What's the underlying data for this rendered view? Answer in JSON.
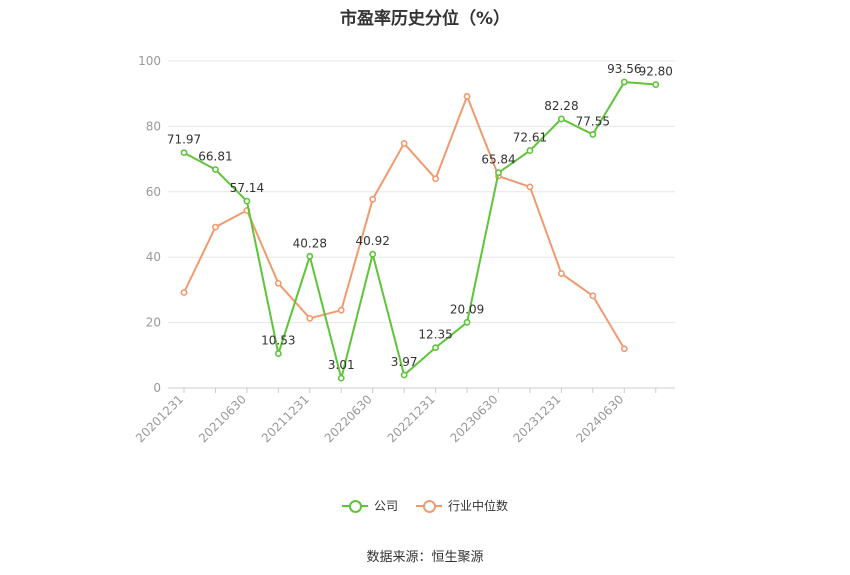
{
  "title": "市盈率历史分位（%）",
  "source": "数据来源：恒生聚源",
  "colors": {
    "company": "#5ec43a",
    "industry": "#f09a6f",
    "grid": "#e6e6e6",
    "axis": "#999999",
    "label": "#333333"
  },
  "chart_data": {
    "type": "line",
    "title": "市盈率历史分位（%）",
    "xlabel": "",
    "ylabel": "",
    "ylim": [
      0,
      100
    ],
    "yticks": [
      0,
      20,
      40,
      60,
      80,
      100
    ],
    "grid": true,
    "legend_position": "bottom",
    "x": [
      "20201231",
      "",
      "20210630",
      "",
      "20211231",
      "",
      "20220630",
      "",
      "20221231",
      "",
      "20230630",
      "",
      "20231231",
      "",
      "20240630",
      ""
    ],
    "series": [
      {
        "name": "公司",
        "values": [
          71.97,
          66.81,
          57.14,
          10.53,
          40.28,
          3.01,
          40.92,
          3.97,
          12.35,
          20.09,
          65.84,
          72.61,
          82.28,
          77.55,
          93.56,
          92.8
        ],
        "labels": [
          "71.97",
          "66.81",
          "57.14",
          "10.53",
          "40.28",
          "3.01",
          "40.92",
          "3.97",
          "12.35",
          "20.09",
          "65.84",
          "72.61",
          "82.28",
          "77.55",
          "93.56",
          "92.80"
        ]
      },
      {
        "name": "行业中位数",
        "values": [
          29.2,
          49.2,
          54.3,
          32.0,
          21.3,
          23.8,
          57.7,
          74.8,
          64.0,
          89.2,
          64.8,
          61.5,
          35.0,
          28.2,
          12.0,
          null
        ]
      }
    ]
  }
}
